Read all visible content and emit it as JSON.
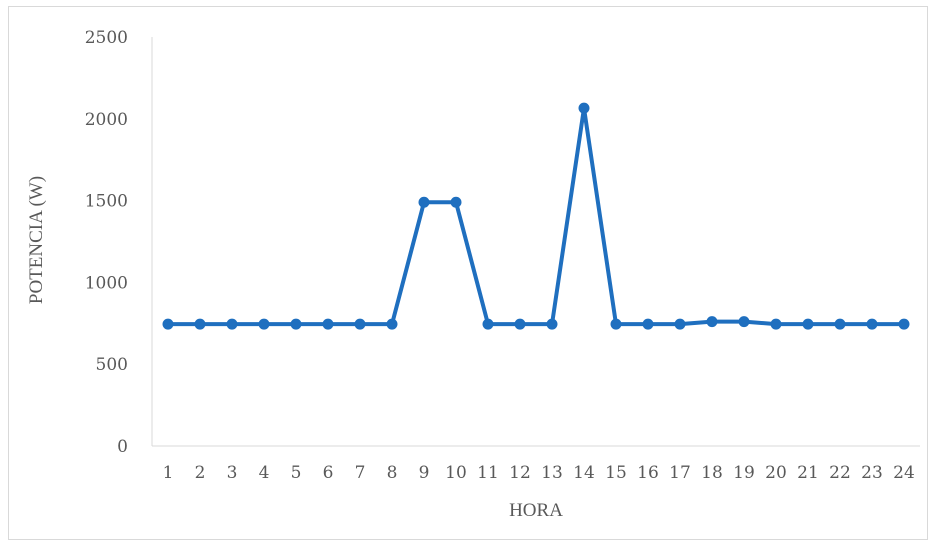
{
  "chart_data": {
    "type": "line",
    "title": "",
    "xlabel": "HORA",
    "ylabel": "POTENCIA (W)",
    "ylim": [
      0,
      2500
    ],
    "yticks": [
      "0",
      "500",
      "1000",
      "1500",
      "2000",
      "2500"
    ],
    "grid": false,
    "legend": "none",
    "categories": [
      "1",
      "2",
      "3",
      "4",
      "5",
      "6",
      "7",
      "8",
      "9",
      "10",
      "11",
      "12",
      "13",
      "14",
      "15",
      "16",
      "17",
      "18",
      "19",
      "20",
      "21",
      "22",
      "23",
      "24"
    ],
    "series": [
      {
        "color": "#1f6fbf",
        "values": [
          745,
          745,
          745,
          745,
          745,
          745,
          745,
          745,
          1490,
          1490,
          745,
          745,
          745,
          2065,
          745,
          745,
          745,
          760,
          760,
          745,
          745,
          745,
          745,
          745
        ]
      }
    ]
  }
}
